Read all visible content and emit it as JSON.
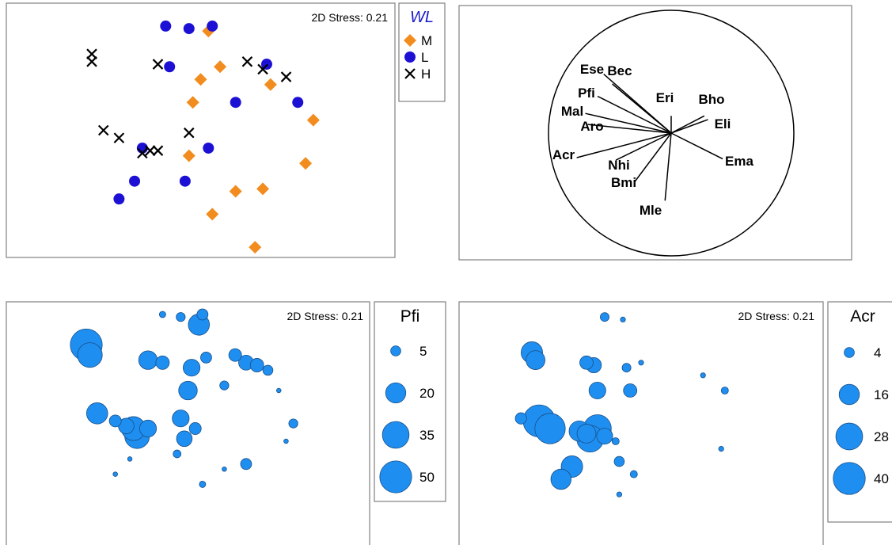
{
  "colors": {
    "M": "#f28c1e",
    "L": "#1c10d4",
    "H": "#000000",
    "bubble": "#1e8ff0",
    "bubble_stroke": "#1a4f8a"
  },
  "chart_data": [
    {
      "type": "scatter",
      "stress": "2D Stress: 0.21",
      "legend_title": "WL",
      "legend_placement": "right",
      "series": [
        {
          "name": "M",
          "marker": "diamond",
          "points": [
            [
              0.52,
              0.11
            ],
            [
              0.55,
              0.25
            ],
            [
              0.5,
              0.3
            ],
            [
              0.68,
              0.32
            ],
            [
              0.48,
              0.39
            ],
            [
              0.79,
              0.46
            ],
            [
              0.47,
              0.6
            ],
            [
              0.77,
              0.63
            ],
            [
              0.66,
              0.73
            ],
            [
              0.59,
              0.74
            ],
            [
              0.53,
              0.83
            ],
            [
              0.64,
              0.96
            ]
          ]
        },
        {
          "name": "L",
          "marker": "circle",
          "points": [
            [
              0.41,
              0.09
            ],
            [
              0.47,
              0.1
            ],
            [
              0.53,
              0.09
            ],
            [
              0.42,
              0.25
            ],
            [
              0.67,
              0.24
            ],
            [
              0.59,
              0.39
            ],
            [
              0.75,
              0.39
            ],
            [
              0.35,
              0.57
            ],
            [
              0.52,
              0.57
            ],
            [
              0.33,
              0.7
            ],
            [
              0.46,
              0.7
            ],
            [
              0.29,
              0.77
            ]
          ]
        },
        {
          "name": "H",
          "marker": "cross",
          "points": [
            [
              0.22,
              0.2
            ],
            [
              0.22,
              0.23
            ],
            [
              0.39,
              0.24
            ],
            [
              0.62,
              0.23
            ],
            [
              0.66,
              0.26
            ],
            [
              0.72,
              0.29
            ],
            [
              0.25,
              0.5
            ],
            [
              0.29,
              0.53
            ],
            [
              0.47,
              0.51
            ],
            [
              0.35,
              0.59
            ],
            [
              0.37,
              0.58
            ],
            [
              0.39,
              0.58
            ]
          ]
        }
      ]
    },
    {
      "type": "vector",
      "vectors": [
        {
          "label": "Ese",
          "x": -0.55,
          "y": 0.48
        },
        {
          "label": "Bec",
          "x": -0.48,
          "y": 0.4
        },
        {
          "label": "Pfi",
          "x": -0.6,
          "y": 0.3
        },
        {
          "label": "Mal",
          "x": -0.7,
          "y": 0.16
        },
        {
          "label": "Aro",
          "x": -0.68,
          "y": 0.07
        },
        {
          "label": "Acr",
          "x": -0.77,
          "y": -0.2
        },
        {
          "label": "Nhi",
          "x": -0.45,
          "y": -0.22
        },
        {
          "label": "Bmi",
          "x": -0.3,
          "y": -0.4
        },
        {
          "label": "Mle",
          "x": -0.05,
          "y": -0.55
        },
        {
          "label": "Eri",
          "x": 0.0,
          "y": 0.14
        },
        {
          "label": "Bho",
          "x": 0.27,
          "y": 0.14
        },
        {
          "label": "Eli",
          "x": 0.3,
          "y": 0.11
        },
        {
          "label": "Ema",
          "x": 0.42,
          "y": -0.21
        }
      ]
    },
    {
      "type": "bubble",
      "variable": "Pfi",
      "stress": "2D Stress: 0.21",
      "legend_title": "Pfi",
      "legend_placement": "right",
      "legend_values": [
        5,
        20,
        35,
        50
      ],
      "points": [
        [
          0.22,
          0.17,
          50
        ],
        [
          0.23,
          0.21,
          30
        ],
        [
          0.43,
          0.05,
          2
        ],
        [
          0.48,
          0.06,
          4
        ],
        [
          0.54,
          0.05,
          6
        ],
        [
          0.53,
          0.09,
          22
        ],
        [
          0.39,
          0.23,
          17
        ],
        [
          0.43,
          0.24,
          9
        ],
        [
          0.51,
          0.26,
          14
        ],
        [
          0.55,
          0.22,
          6
        ],
        [
          0.63,
          0.21,
          8
        ],
        [
          0.66,
          0.24,
          11
        ],
        [
          0.69,
          0.25,
          9
        ],
        [
          0.72,
          0.27,
          5
        ],
        [
          0.5,
          0.35,
          17
        ],
        [
          0.6,
          0.33,
          4
        ],
        [
          0.75,
          0.35,
          1
        ],
        [
          0.25,
          0.44,
          22
        ],
        [
          0.3,
          0.47,
          7
        ],
        [
          0.33,
          0.49,
          12
        ],
        [
          0.35,
          0.5,
          28
        ],
        [
          0.39,
          0.5,
          14
        ],
        [
          0.36,
          0.53,
          30
        ],
        [
          0.48,
          0.46,
          14
        ],
        [
          0.52,
          0.5,
          7
        ],
        [
          0.49,
          0.54,
          12
        ],
        [
          0.34,
          0.62,
          1
        ],
        [
          0.47,
          0.6,
          3
        ],
        [
          0.6,
          0.66,
          1
        ],
        [
          0.66,
          0.64,
          6
        ],
        [
          0.3,
          0.68,
          1
        ],
        [
          0.54,
          0.72,
          2
        ],
        [
          0.79,
          0.48,
          4
        ],
        [
          0.77,
          0.55,
          1
        ]
      ]
    },
    {
      "type": "bubble",
      "variable": "Acr",
      "stress": "2D Stress: 0.21",
      "legend_title": "Acr",
      "legend_placement": "right",
      "legend_values": [
        4,
        16,
        28,
        40
      ],
      "points": [
        [
          0.4,
          0.06,
          3
        ],
        [
          0.45,
          0.07,
          1
        ],
        [
          0.2,
          0.2,
          18
        ],
        [
          0.21,
          0.23,
          14
        ],
        [
          0.35,
          0.24,
          7
        ],
        [
          0.37,
          0.25,
          9
        ],
        [
          0.46,
          0.26,
          3
        ],
        [
          0.5,
          0.24,
          1
        ],
        [
          0.38,
          0.35,
          11
        ],
        [
          0.47,
          0.35,
          7
        ],
        [
          0.67,
          0.29,
          1
        ],
        [
          0.73,
          0.35,
          2
        ],
        [
          0.17,
          0.46,
          5
        ],
        [
          0.22,
          0.47,
          40
        ],
        [
          0.25,
          0.5,
          36
        ],
        [
          0.33,
          0.51,
          16
        ],
        [
          0.38,
          0.5,
          30
        ],
        [
          0.35,
          0.52,
          14
        ],
        [
          0.36,
          0.54,
          28
        ],
        [
          0.4,
          0.53,
          10
        ],
        [
          0.43,
          0.55,
          2
        ],
        [
          0.31,
          0.65,
          18
        ],
        [
          0.28,
          0.7,
          16
        ],
        [
          0.44,
          0.63,
          4
        ],
        [
          0.48,
          0.68,
          2
        ],
        [
          0.44,
          0.76,
          1
        ],
        [
          0.72,
          0.58,
          1
        ]
      ]
    }
  ]
}
